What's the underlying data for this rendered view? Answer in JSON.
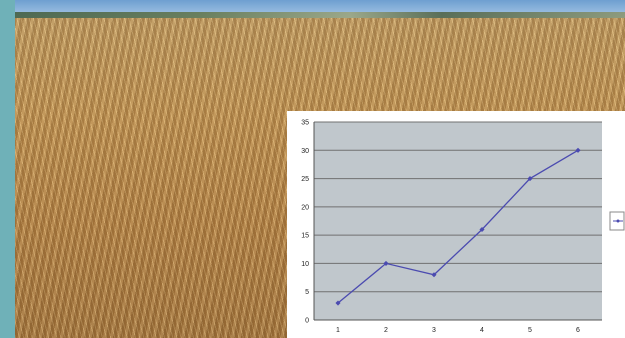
{
  "chart_data": {
    "type": "line",
    "x": [
      1,
      2,
      3,
      4,
      5,
      6
    ],
    "values": [
      3,
      10,
      8,
      16,
      25,
      30
    ],
    "y_ticks": [
      0,
      5,
      10,
      15,
      20,
      25,
      30,
      35
    ],
    "ylim": [
      0,
      35
    ],
    "grid": true,
    "legend_placement": "right",
    "colors": {
      "line": "#4b4bb0",
      "plot_bg": "#c0c7cc",
      "grid": "#707070"
    }
  }
}
